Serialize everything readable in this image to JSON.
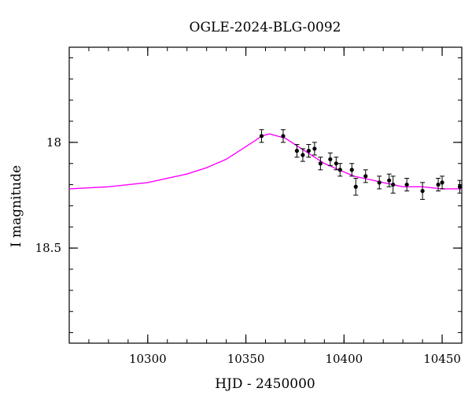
{
  "chart_data": {
    "type": "scatter",
    "title": "OGLE-2024-BLG-0092",
    "xlabel": "HJD - 2450000",
    "ylabel": "I magnitude",
    "xlim": [
      10260,
      10460
    ],
    "ylim": [
      18.95,
      17.55
    ],
    "y_inverted": true,
    "grid": false,
    "x_ticks": [
      10300,
      10350,
      10400,
      10450
    ],
    "x_tick_labels": [
      "10300",
      "10350",
      "10400",
      "10450"
    ],
    "y_ticks": [
      18,
      18.5
    ],
    "y_tick_labels": [
      "18",
      "18.5"
    ],
    "x_minor_step": 10,
    "y_minor_step": 0.1,
    "colors": {
      "model": "#ff00ff",
      "points": "#000000",
      "axes": "#000000"
    },
    "series": [
      {
        "kind": "points_with_errorbars",
        "x": [
          10358,
          10369,
          10376,
          10379,
          10382,
          10385,
          10388,
          10393,
          10396,
          10398,
          10404,
          10406,
          10411,
          10418,
          10423,
          10425,
          10432,
          10440,
          10448,
          10450,
          10459
        ],
        "y": [
          17.97,
          17.97,
          18.04,
          18.06,
          18.04,
          18.03,
          18.1,
          18.08,
          18.1,
          18.13,
          18.13,
          18.21,
          18.16,
          18.19,
          18.18,
          18.2,
          18.2,
          18.23,
          18.2,
          18.19,
          18.21
        ],
        "yerr": [
          0.03,
          0.03,
          0.03,
          0.03,
          0.03,
          0.03,
          0.03,
          0.03,
          0.03,
          0.03,
          0.03,
          0.04,
          0.03,
          0.03,
          0.03,
          0.04,
          0.03,
          0.04,
          0.03,
          0.03,
          0.03
        ]
      },
      {
        "kind": "model_curve",
        "x": [
          10260,
          10280,
          10300,
          10320,
          10330,
          10340,
          10345,
          10350,
          10355,
          10358,
          10362,
          10366,
          10370,
          10375,
          10380,
          10385,
          10390,
          10395,
          10400,
          10405,
          10410,
          10415,
          10420,
          10425,
          10430,
          10440,
          10450,
          10460
        ],
        "y": [
          18.22,
          18.21,
          18.19,
          18.15,
          18.12,
          18.08,
          18.05,
          18.02,
          17.99,
          17.97,
          17.96,
          17.97,
          17.98,
          18.01,
          18.04,
          18.07,
          18.1,
          18.12,
          18.14,
          18.16,
          18.17,
          18.18,
          18.19,
          18.2,
          18.21,
          18.21,
          18.22,
          18.22
        ]
      }
    ]
  }
}
